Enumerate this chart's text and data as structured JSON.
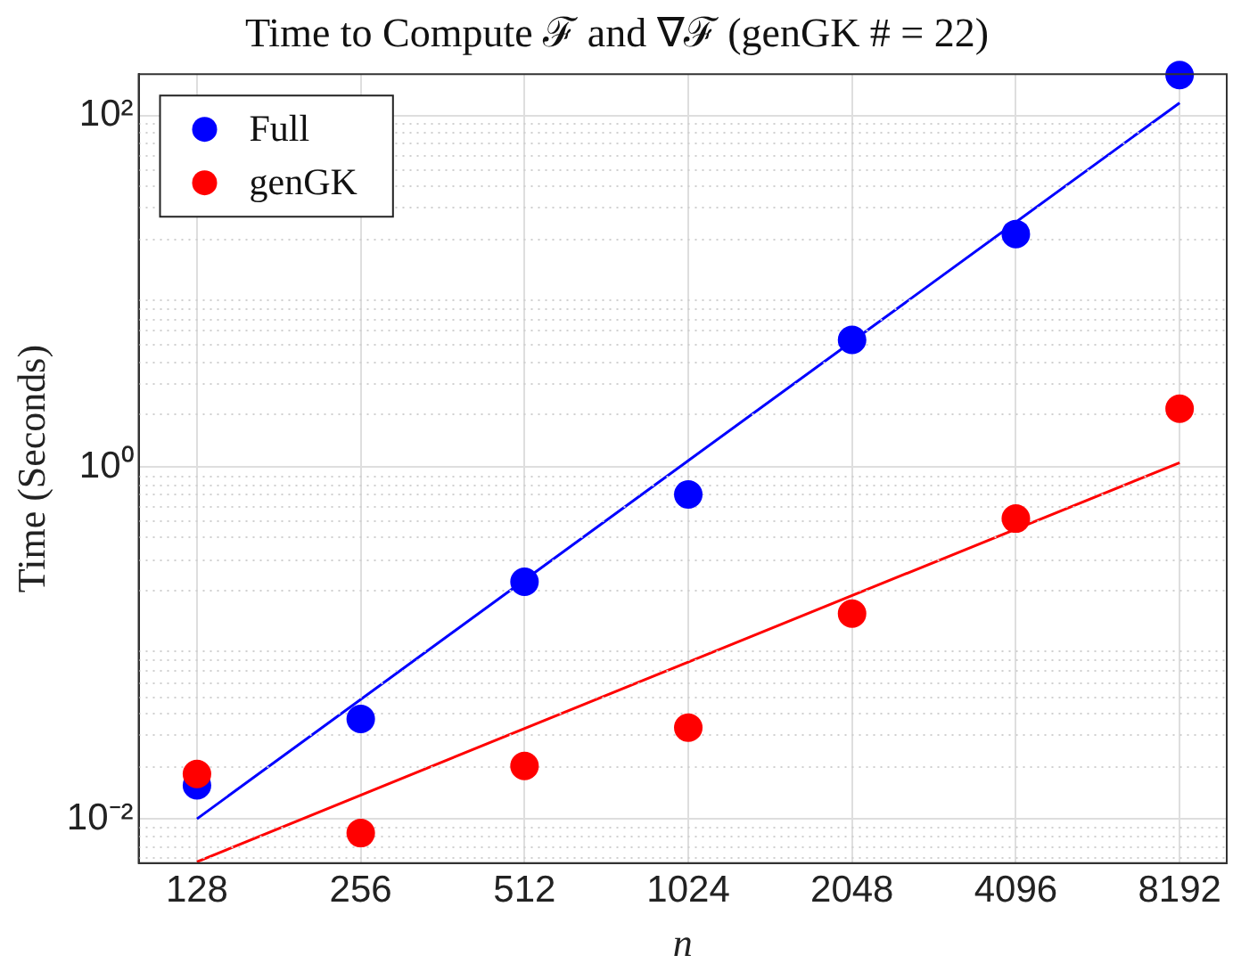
{
  "chart_data": {
    "type": "scatter",
    "title": "Time to Compute ℱ and ∇ℱ (genGK # = 22)",
    "xlabel": "n",
    "ylabel": "Time (Seconds)",
    "x": [
      128,
      256,
      512,
      1024,
      2048,
      4096,
      8192
    ],
    "series": [
      {
        "name": "Full",
        "color": "#0000ff",
        "values": [
          0.0155,
          0.037,
          0.223,
          0.7,
          5.3,
          21.2,
          170
        ]
      },
      {
        "name": "genGK",
        "color": "#ff0000",
        "values": [
          0.018,
          0.0083,
          0.02,
          0.033,
          0.147,
          0.51,
          2.15
        ]
      },
      {
        "type": "line",
        "color": "#0000ff",
        "x": [
          128,
          1024,
          8192
        ],
        "values": [
          0.01,
          1.09,
          118
        ],
        "marker": "none"
      },
      {
        "type": "line",
        "color": "#ff0000",
        "x": [
          128,
          1024,
          8192
        ],
        "values": [
          0.0057,
          0.078,
          1.06
        ],
        "marker": "none"
      }
    ],
    "log": "xy",
    "xlim": [
      100,
      10000
    ],
    "ylim": [
      0.0056,
      172
    ],
    "xticks": [
      128,
      256,
      512,
      1024,
      2048,
      4096,
      8192
    ],
    "yticks": [
      {
        "value": 0.01,
        "label": "10⁻²"
      },
      {
        "value": 1,
        "label": "10⁰"
      },
      {
        "value": 100,
        "label": "10²"
      }
    ],
    "grid": true,
    "legend": "top left",
    "marker": "circle"
  }
}
